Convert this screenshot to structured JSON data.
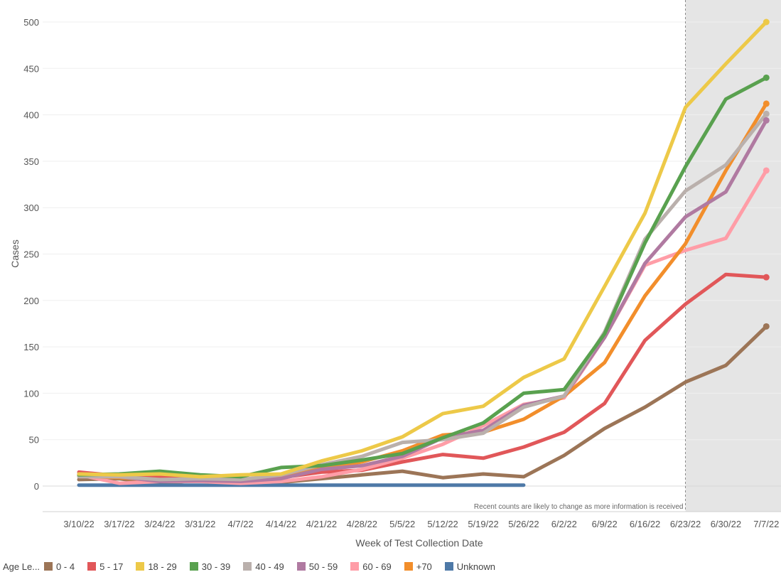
{
  "chart_data": {
    "type": "line",
    "title": "",
    "xlabel": "Week of Test Collection Date",
    "ylabel": "Cases",
    "ylim": [
      -30,
      520
    ],
    "yticks": [
      0,
      50,
      100,
      150,
      200,
      250,
      300,
      350,
      400,
      450,
      500
    ],
    "categories": [
      "3/10/22",
      "3/17/22",
      "3/24/22",
      "3/31/22",
      "4/7/22",
      "4/14/22",
      "4/21/22",
      "4/28/22",
      "5/5/22",
      "5/12/22",
      "5/19/22",
      "5/26/22",
      "6/2/22",
      "6/9/22",
      "6/16/22",
      "6/23/22",
      "6/30/22",
      "7/7/22"
    ],
    "annotation": "Recent counts are likely to change as more information is received",
    "shaded_from_category": "6/23/22",
    "legend_title": "Age Le...",
    "series": [
      {
        "name": "0 - 4",
        "color": "#9c7557",
        "values": [
          7,
          8,
          2,
          7,
          3,
          4,
          8,
          12,
          16,
          9,
          13,
          10,
          33,
          62,
          85,
          112,
          130,
          172
        ]
      },
      {
        "name": "Unknown",
        "color": "#4e79a7",
        "values": [
          1,
          1,
          1,
          1,
          1,
          1,
          1,
          1,
          1,
          1,
          1,
          1,
          null,
          null,
          null,
          null,
          null,
          null
        ]
      },
      {
        "name": "5 - 17",
        "color": "#e15759",
        "values": [
          15,
          11,
          10,
          10,
          5,
          9,
          15,
          17,
          26,
          34,
          30,
          42,
          58,
          89,
          157,
          196,
          228,
          225
        ]
      },
      {
        "name": "60 - 69",
        "color": "#ff9da7",
        "values": [
          12,
          3,
          5,
          5,
          3,
          5,
          10,
          18,
          30,
          45,
          65,
          88,
          95,
          160,
          238,
          254,
          267,
          340
        ]
      },
      {
        "name": "+70",
        "color": "#f28e2b",
        "values": [
          11,
          9,
          6,
          8,
          6,
          10,
          19,
          26,
          38,
          55,
          58,
          72,
          97,
          133,
          205,
          261,
          340,
          412
        ]
      },
      {
        "name": "50 - 59",
        "color": "#b07aa1",
        "values": [
          13,
          10,
          5,
          6,
          5,
          8,
          18,
          22,
          32,
          52,
          60,
          87,
          97,
          160,
          240,
          290,
          317,
          394
        ]
      },
      {
        "name": "40 - 49",
        "color": "#bab0ac",
        "values": [
          10,
          10,
          7,
          8,
          7,
          12,
          23,
          32,
          47,
          50,
          57,
          85,
          97,
          166,
          266,
          318,
          346,
          401
        ]
      },
      {
        "name": "30 - 39",
        "color": "#59a14f",
        "values": [
          12,
          13,
          16,
          12,
          10,
          20,
          22,
          28,
          35,
          52,
          68,
          100,
          104,
          164,
          262,
          344,
          417,
          440
        ]
      },
      {
        "name": "18 - 29",
        "color": "#edc948",
        "values": [
          13,
          12,
          13,
          10,
          12,
          13,
          27,
          38,
          53,
          78,
          86,
          117,
          137,
          215,
          294,
          408,
          455,
          500
        ]
      }
    ]
  },
  "legend_order": [
    "0 - 4",
    "5 - 17",
    "18 - 29",
    "30 - 39",
    "40 - 49",
    "50 - 59",
    "60 - 69",
    "+70",
    "Unknown"
  ]
}
